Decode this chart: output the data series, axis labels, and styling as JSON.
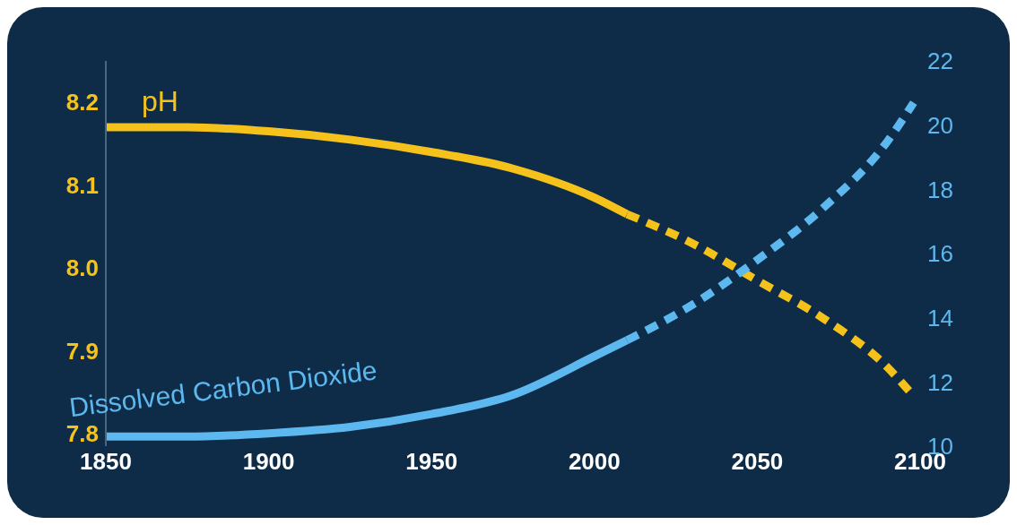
{
  "chart_data": {
    "type": "line",
    "xlim": [
      1850,
      2100
    ],
    "xticks": [
      1850,
      1900,
      1950,
      2000,
      2050,
      2100
    ],
    "ylim": [
      7.785,
      8.25
    ],
    "yticks": [
      {
        "value": 7.8,
        "label": "7.8"
      },
      {
        "value": 7.9,
        "label": "7.9"
      },
      {
        "value": 8.0,
        "label": "8.0"
      },
      {
        "value": 8.1,
        "label": "8.1"
      },
      {
        "value": 8.2,
        "label": "8.2"
      }
    ],
    "y2lim": [
      10,
      22
    ],
    "y2ticks": [
      10,
      12,
      14,
      16,
      18,
      20,
      22
    ],
    "marker": "none",
    "series": [
      {
        "name": "pH",
        "color": "#f5c21b",
        "line_style": "solid",
        "x": [
          1850,
          1875,
          1900,
          1925,
          1950,
          1975,
          2000,
          2010
        ],
        "values": [
          8.17,
          8.17,
          8.165,
          8.155,
          8.14,
          8.12,
          8.085,
          8.065
        ]
      },
      {
        "color": "#f5c21b",
        "line_style": "dashed",
        "x": [
          2010,
          2030,
          2050,
          2070,
          2090,
          2097
        ],
        "values": [
          8.065,
          8.03,
          7.985,
          7.94,
          7.88,
          7.85
        ]
      },
      {
        "name": "Dissolved Carbon Dioxide",
        "color": "#5cb8ee",
        "line_style": "solid",
        "axis": "y2",
        "x": [
          1850,
          1875,
          1900,
          1925,
          1950,
          1975,
          2000,
          2010
        ],
        "values": [
          10.3,
          10.3,
          10.4,
          10.6,
          11.0,
          11.6,
          12.8,
          13.3
        ]
      },
      {
        "color": "#5cb8ee",
        "line_style": "dashed",
        "axis": "y2",
        "x": [
          2010,
          2030,
          2050,
          2070,
          2090,
          2098
        ],
        "values": [
          13.3,
          14.4,
          15.8,
          17.4,
          19.5,
          20.7
        ]
      }
    ]
  }
}
